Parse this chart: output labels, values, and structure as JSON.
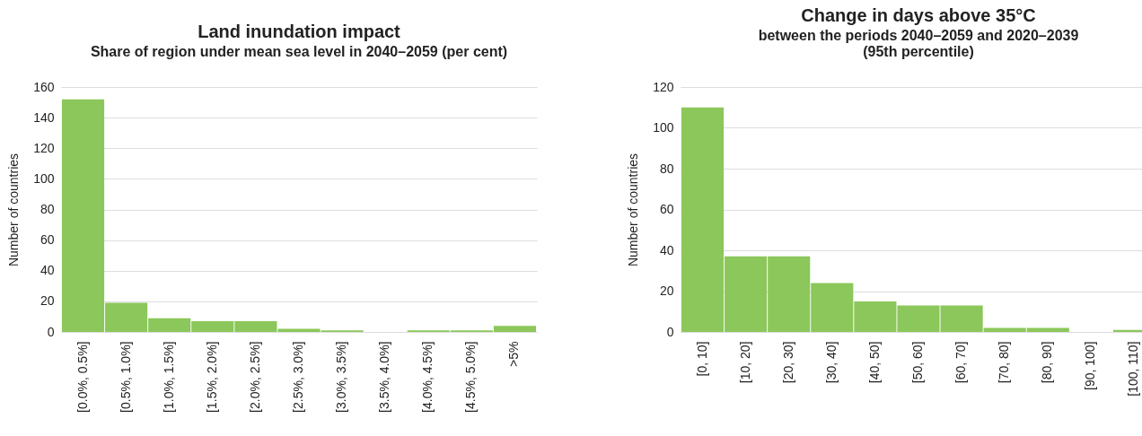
{
  "chart_data": [
    {
      "type": "bar",
      "title": "Land inundation impact",
      "subtitle": "Share of region under mean sea level in 2040–2059 (per cent)",
      "ylabel": "Number of countries",
      "categories": [
        "[0.0%, 0.5%]",
        "[0.5%, 1.0%]",
        "[1.0%, 1.5%]",
        "[1.5%, 2.0%]",
        "[2.0%, 2.5%]",
        "[2.5%, 3.0%]",
        "[3.0%, 3.5%]",
        "[3.5%, 4.0%]",
        "[4.0%, 4.5%]",
        "[4.5%, 5.0%]",
        ">5%"
      ],
      "values": [
        152,
        19,
        9,
        7,
        7,
        2,
        1,
        0,
        1,
        1,
        4
      ],
      "color": "#8bc75a",
      "ylim": [
        0,
        160
      ],
      "yticks": [
        0,
        20,
        40,
        60,
        80,
        100,
        120,
        140,
        160
      ],
      "grid": "y"
    },
    {
      "type": "bar",
      "title": "Change in days above 35°C",
      "subtitle": "between the periods 2040–2059 and 2020–2039\n(95th percentile)",
      "ylabel": "Number of countries",
      "categories": [
        "[0, 10]",
        "[10, 20]",
        "[20, 30]",
        "[30, 40]",
        "[40, 50]",
        "[50, 60]",
        "[60, 70]",
        "[70, 80]",
        "[80, 90]",
        "[90, 100]",
        "[100, 110]"
      ],
      "values": [
        110,
        37,
        37,
        24,
        15,
        13,
        13,
        2,
        2,
        0,
        1
      ],
      "color": "#8bc75a",
      "ylim": [
        0,
        120
      ],
      "yticks": [
        0,
        20,
        40,
        60,
        80,
        100,
        120
      ],
      "grid": "y"
    }
  ]
}
